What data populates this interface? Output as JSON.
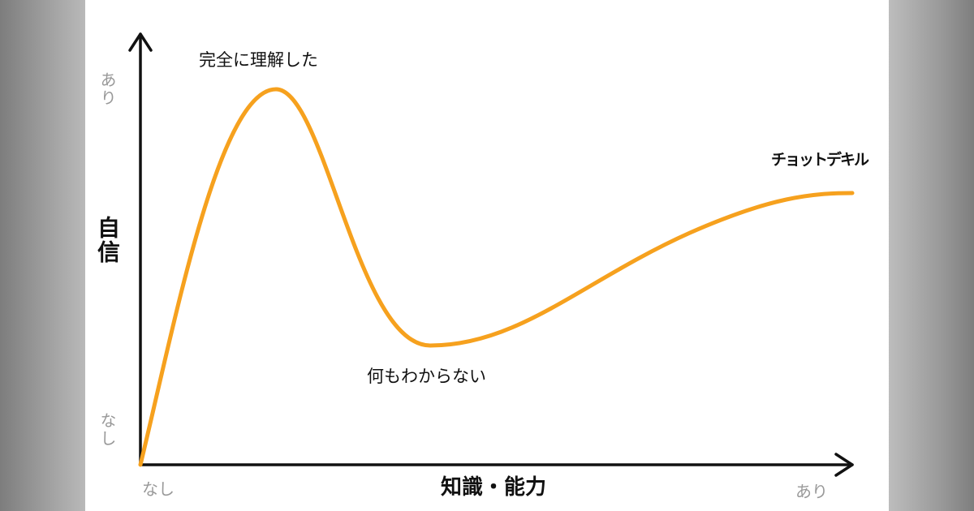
{
  "y_axis": {
    "label": "自信",
    "top": "あり",
    "bottom": "なし"
  },
  "x_axis": {
    "label": "知識・能力",
    "start": "なし",
    "end": "あり"
  },
  "annotations": {
    "peak": "完全に理解した",
    "valley": "何もわからない",
    "plateau": "チョットデキル"
  }
}
